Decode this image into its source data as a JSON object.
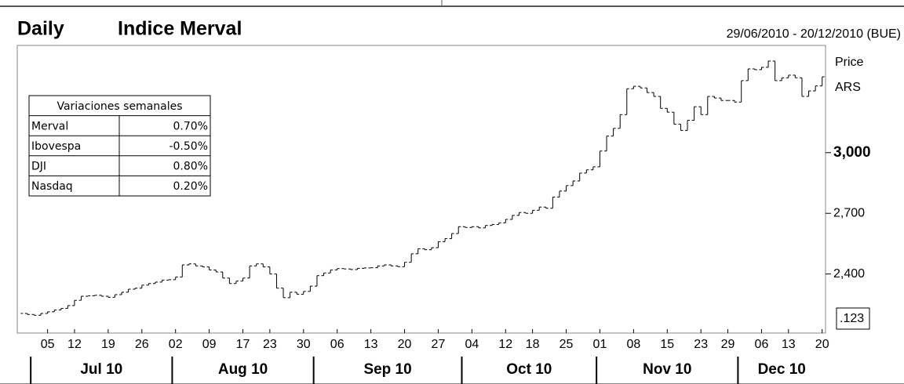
{
  "chart_data": {
    "type": "step-bar",
    "period": "Daily",
    "title": "Indice Merval",
    "subtitle": "29/06/2010 - 20/12/2010 (BUE)",
    "y_label": "Price",
    "y_unit": "ARS",
    "value_box": ".123",
    "color": "#000000",
    "categories": [
      "29/06/2010",
      "30/06/2010",
      "01/07/2010",
      "02/07/2010",
      "05/07/2010",
      "06/07/2010",
      "07/07/2010",
      "08/07/2010",
      "12/07/2010",
      "13/07/2010",
      "14/07/2010",
      "15/07/2010",
      "16/07/2010",
      "19/07/2010",
      "20/07/2010",
      "21/07/2010",
      "22/07/2010",
      "23/07/2010",
      "26/07/2010",
      "27/07/2010",
      "28/07/2010",
      "29/07/2010",
      "30/07/2010",
      "02/08/2010",
      "03/08/2010",
      "04/08/2010",
      "05/08/2010",
      "06/08/2010",
      "09/08/2010",
      "10/08/2010",
      "11/08/2010",
      "12/08/2010",
      "13/08/2010",
      "17/08/2010",
      "18/08/2010",
      "19/08/2010",
      "20/08/2010",
      "23/08/2010",
      "24/08/2010",
      "25/08/2010",
      "26/08/2010",
      "27/08/2010",
      "30/08/2010",
      "31/08/2010",
      "01/09/2010",
      "02/09/2010",
      "03/09/2010",
      "06/09/2010",
      "07/09/2010",
      "08/09/2010",
      "09/09/2010",
      "10/09/2010",
      "13/09/2010",
      "14/09/2010",
      "15/09/2010",
      "16/09/2010",
      "17/09/2010",
      "20/09/2010",
      "21/09/2010",
      "22/09/2010",
      "23/09/2010",
      "24/09/2010",
      "27/09/2010",
      "28/09/2010",
      "29/09/2010",
      "30/09/2010",
      "01/10/2010",
      "04/10/2010",
      "05/10/2010",
      "06/10/2010",
      "07/10/2010",
      "08/10/2010",
      "12/10/2010",
      "13/10/2010",
      "14/10/2010",
      "15/10/2010",
      "18/10/2010",
      "19/10/2010",
      "20/10/2010",
      "21/10/2010",
      "22/10/2010",
      "25/10/2010",
      "26/10/2010",
      "27/10/2010",
      "28/10/2010",
      "29/10/2010",
      "01/11/2010",
      "02/11/2010",
      "03/11/2010",
      "04/11/2010",
      "05/11/2010",
      "08/11/2010",
      "09/11/2010",
      "10/11/2010",
      "11/11/2010",
      "12/11/2010",
      "15/11/2010",
      "16/11/2010",
      "17/11/2010",
      "18/11/2010",
      "19/11/2010",
      "23/11/2010",
      "24/11/2010",
      "25/11/2010",
      "26/11/2010",
      "29/11/2010",
      "30/11/2010",
      "01/12/2010",
      "02/12/2010",
      "03/12/2010",
      "06/12/2010",
      "07/12/2010",
      "09/12/2010",
      "10/12/2010",
      "13/12/2010",
      "14/12/2010",
      "15/12/2010",
      "16/12/2010",
      "17/12/2010",
      "20/12/2010"
    ],
    "values": [
      2205,
      2200,
      2196,
      2205,
      2213,
      2222,
      2230,
      2244,
      2270,
      2290,
      2292,
      2295,
      2290,
      2285,
      2298,
      2310,
      2325,
      2330,
      2345,
      2353,
      2360,
      2370,
      2372,
      2385,
      2445,
      2450,
      2440,
      2435,
      2420,
      2410,
      2380,
      2353,
      2365,
      2380,
      2440,
      2450,
      2435,
      2400,
      2330,
      2283,
      2310,
      2300,
      2314,
      2340,
      2392,
      2405,
      2420,
      2427,
      2425,
      2422,
      2428,
      2430,
      2431,
      2440,
      2445,
      2440,
      2436,
      2458,
      2500,
      2525,
      2520,
      2530,
      2560,
      2575,
      2600,
      2634,
      2630,
      2634,
      2628,
      2640,
      2645,
      2653,
      2670,
      2690,
      2704,
      2700,
      2715,
      2731,
      2725,
      2780,
      2810,
      2837,
      2860,
      2899,
      2915,
      2930,
      3008,
      3082,
      3120,
      3188,
      3316,
      3328,
      3320,
      3297,
      3278,
      3219,
      3200,
      3141,
      3110,
      3160,
      3227,
      3188,
      3278,
      3270,
      3258,
      3258,
      3250,
      3356,
      3414,
      3410,
      3422,
      3453,
      3356,
      3370,
      3383,
      3370,
      3278,
      3305,
      3330,
      3375
    ],
    "ylim": [
      2108,
      3530
    ],
    "yticks": [
      {
        "value": 2400,
        "label": "2,400"
      },
      {
        "value": 2700,
        "label": "2,700"
      },
      {
        "value": 3000,
        "label": "3,000"
      }
    ],
    "ytick_bold": [
      false,
      false,
      true
    ],
    "xticks": [
      {
        "value": "05/07/2010",
        "label": "05"
      },
      {
        "value": "12/07/2010",
        "label": "12"
      },
      {
        "value": "19/07/2010",
        "label": "19"
      },
      {
        "value": "26/07/2010",
        "label": "26"
      },
      {
        "value": "02/08/2010",
        "label": "02"
      },
      {
        "value": "09/08/2010",
        "label": "09"
      },
      {
        "value": "17/08/2010",
        "label": "17"
      },
      {
        "value": "23/08/2010",
        "label": "23"
      },
      {
        "value": "30/08/2010",
        "label": "30"
      },
      {
        "value": "06/09/2010",
        "label": "06"
      },
      {
        "value": "13/09/2010",
        "label": "13"
      },
      {
        "value": "20/09/2010",
        "label": "20"
      },
      {
        "value": "27/09/2010",
        "label": "27"
      },
      {
        "value": "04/10/2010",
        "label": "04"
      },
      {
        "value": "12/10/2010",
        "label": "12"
      },
      {
        "value": "18/10/2010",
        "label": "18"
      },
      {
        "value": "25/10/2010",
        "label": "25"
      },
      {
        "value": "01/11/2010",
        "label": "01"
      },
      {
        "value": "08/11/2010",
        "label": "08"
      },
      {
        "value": "15/11/2010",
        "label": "15"
      },
      {
        "value": "23/11/2010",
        "label": "23"
      },
      {
        "value": "29/11/2010",
        "label": "29"
      },
      {
        "value": "06/12/2010",
        "label": "06"
      },
      {
        "value": "13/12/2010",
        "label": "13"
      },
      {
        "value": "20/12/2010",
        "label": "20"
      }
    ],
    "months": [
      {
        "label": "Jul 10",
        "start": "01/07/2010"
      },
      {
        "label": "Aug 10",
        "start": "02/08/2010"
      },
      {
        "label": "Sep 10",
        "start": "01/09/2010"
      },
      {
        "label": "Oct 10",
        "start": "01/10/2010"
      },
      {
        "label": "Nov 10",
        "start": "01/11/2010"
      },
      {
        "label": "Dec 10",
        "start": "01/12/2010"
      }
    ],
    "table": {
      "title": "Variaciones semanales",
      "rows": [
        [
          "Merval",
          "0.70%"
        ],
        [
          "Ibovespa",
          "-0.50%"
        ],
        [
          "DJI",
          "0.80%"
        ],
        [
          "Nasdaq",
          "0.20%"
        ]
      ]
    }
  }
}
